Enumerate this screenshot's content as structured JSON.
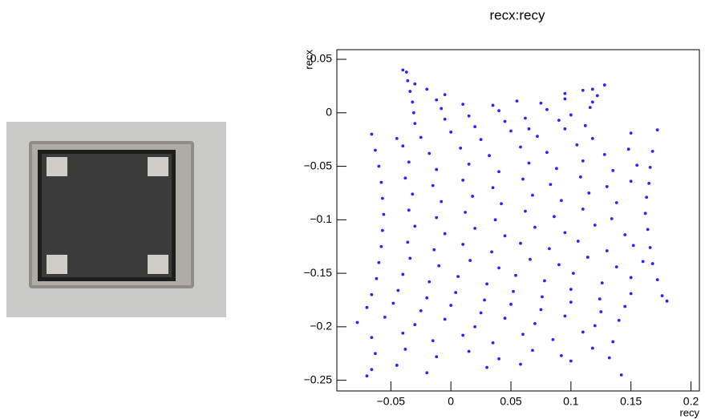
{
  "chart_data": {
    "type": "scatter",
    "title": "recx:recy",
    "x_label": "recy",
    "y_label": "recx",
    "color": "#2424ff",
    "xlim": [
      -0.095,
      0.207
    ],
    "ylim": [
      -0.26,
      0.059
    ],
    "xticks": [
      {
        "value": -0.05,
        "label": "−0.05"
      },
      0,
      0.05,
      0.1,
      0.15,
      0.2
    ],
    "yticks": [
      0.05,
      0,
      {
        "value": -0.05,
        "label": "−0.05"
      },
      {
        "value": -0.1,
        "label": "−0.1"
      },
      {
        "value": -0.15,
        "label": "−0.15"
      },
      {
        "value": -0.2,
        "label": "−0.2"
      },
      {
        "value": -0.25,
        "label": "−0.25"
      }
    ],
    "x": [
      -0.04,
      -0.037,
      -0.036,
      -0.03,
      0.118,
      0.128,
      -0.034,
      -0.02,
      -0.005,
      0.095,
      0.11,
      0.122,
      -0.032,
      -0.012,
      0.01,
      0.035,
      0.055,
      0.075,
      0.095,
      0.118,
      -0.031,
      -0.008,
      0.015,
      0.04,
      0.062,
      0.08,
      0.1,
      0.116,
      -0.03,
      -0.005,
      0.02,
      0.045,
      0.065,
      0.09,
      0.112,
      -0.066,
      -0.045,
      -0.025,
      0.0,
      0.025,
      0.05,
      0.072,
      0.095,
      0.118,
      0.15,
      0.172,
      -0.063,
      -0.04,
      -0.018,
      0.008,
      0.032,
      0.058,
      0.08,
      0.105,
      0.128,
      0.148,
      0.168,
      -0.06,
      -0.035,
      -0.012,
      0.015,
      0.04,
      0.065,
      0.088,
      0.11,
      0.135,
      0.155,
      0.166,
      -0.058,
      -0.038,
      -0.015,
      0.01,
      0.035,
      0.06,
      0.083,
      0.108,
      0.13,
      0.15,
      0.165,
      -0.057,
      -0.032,
      -0.008,
      0.018,
      0.042,
      0.068,
      0.092,
      0.115,
      0.138,
      0.163,
      -0.056,
      -0.035,
      -0.012,
      0.012,
      0.037,
      0.062,
      0.086,
      0.11,
      0.134,
      0.162,
      -0.057,
      -0.03,
      -0.005,
      0.02,
      0.045,
      0.07,
      0.095,
      0.12,
      0.145,
      0.164,
      -0.058,
      -0.036,
      -0.014,
      0.01,
      0.034,
      0.058,
      0.082,
      0.106,
      0.13,
      0.152,
      0.166,
      -0.06,
      -0.034,
      -0.01,
      0.016,
      0.04,
      0.066,
      0.09,
      0.114,
      0.138,
      0.16,
      0.168,
      -0.062,
      -0.04,
      -0.018,
      0.006,
      0.03,
      0.054,
      0.078,
      0.102,
      0.126,
      0.15,
      0.172,
      -0.066,
      -0.044,
      -0.02,
      0.004,
      0.028,
      0.052,
      0.076,
      0.1,
      0.124,
      0.15,
      0.176,
      -0.07,
      -0.048,
      -0.025,
      0.0,
      0.025,
      0.05,
      0.075,
      0.1,
      0.125,
      0.145,
      0.18,
      -0.078,
      -0.055,
      -0.03,
      -0.005,
      0.02,
      0.045,
      0.07,
      0.095,
      0.12,
      0.14,
      -0.066,
      -0.04,
      -0.015,
      0.01,
      0.035,
      0.06,
      0.085,
      0.11,
      0.135,
      -0.063,
      -0.038,
      -0.012,
      0.015,
      0.04,
      0.068,
      0.092,
      0.118,
      0.132,
      -0.066,
      -0.045,
      -0.02,
      0.03,
      0.058,
      0.1,
      -0.07,
      0.142
    ],
    "values": [
      0.04,
      0.038,
      0.03,
      0.027,
      0.022,
      0.026,
      0.02,
      0.022,
      0.017,
      0.018,
      0.021,
      0.016,
      0.01,
      0.012,
      0.008,
      0.007,
      0.011,
      0.009,
      0.013,
      0.01,
      0.0,
      0.004,
      -0.003,
      0.002,
      -0.005,
      0.003,
      -0.002,
      0.005,
      -0.01,
      -0.006,
      -0.013,
      -0.008,
      -0.015,
      -0.007,
      -0.012,
      -0.02,
      -0.024,
      -0.023,
      -0.018,
      -0.025,
      -0.017,
      -0.022,
      -0.015,
      -0.024,
      -0.019,
      -0.016,
      -0.035,
      -0.031,
      -0.038,
      -0.033,
      -0.04,
      -0.032,
      -0.037,
      -0.03,
      -0.039,
      -0.034,
      -0.036,
      -0.05,
      -0.046,
      -0.053,
      -0.048,
      -0.055,
      -0.047,
      -0.052,
      -0.045,
      -0.054,
      -0.049,
      -0.051,
      -0.065,
      -0.061,
      -0.068,
      -0.063,
      -0.07,
      -0.062,
      -0.067,
      -0.06,
      -0.069,
      -0.064,
      -0.066,
      -0.08,
      -0.076,
      -0.083,
      -0.078,
      -0.085,
      -0.077,
      -0.082,
      -0.075,
      -0.084,
      -0.079,
      -0.095,
      -0.091,
      -0.098,
      -0.093,
      -0.1,
      -0.092,
      -0.097,
      -0.09,
      -0.099,
      -0.094,
      -0.11,
      -0.106,
      -0.113,
      -0.108,
      -0.115,
      -0.107,
      -0.112,
      -0.105,
      -0.114,
      -0.109,
      -0.125,
      -0.121,
      -0.128,
      -0.123,
      -0.13,
      -0.122,
      -0.127,
      -0.12,
      -0.129,
      -0.124,
      -0.126,
      -0.14,
      -0.136,
      -0.143,
      -0.138,
      -0.145,
      -0.137,
      -0.142,
      -0.135,
      -0.144,
      -0.139,
      -0.141,
      -0.155,
      -0.151,
      -0.158,
      -0.153,
      -0.16,
      -0.152,
      -0.157,
      -0.15,
      -0.159,
      -0.154,
      -0.156,
      -0.17,
      -0.166,
      -0.173,
      -0.168,
      -0.175,
      -0.167,
      -0.172,
      -0.165,
      -0.174,
      -0.169,
      -0.171,
      -0.182,
      -0.178,
      -0.185,
      -0.18,
      -0.187,
      -0.179,
      -0.184,
      -0.177,
      -0.186,
      -0.181,
      -0.176,
      -0.196,
      -0.191,
      -0.198,
      -0.193,
      -0.2,
      -0.192,
      -0.197,
      -0.19,
      -0.199,
      -0.194,
      -0.21,
      -0.206,
      -0.213,
      -0.208,
      -0.215,
      -0.207,
      -0.212,
      -0.205,
      -0.214,
      -0.225,
      -0.221,
      -0.228,
      -0.223,
      -0.23,
      -0.222,
      -0.227,
      -0.22,
      -0.229,
      -0.24,
      -0.236,
      -0.243,
      -0.238,
      -0.235,
      -0.232,
      -0.246,
      -0.245
    ]
  }
}
